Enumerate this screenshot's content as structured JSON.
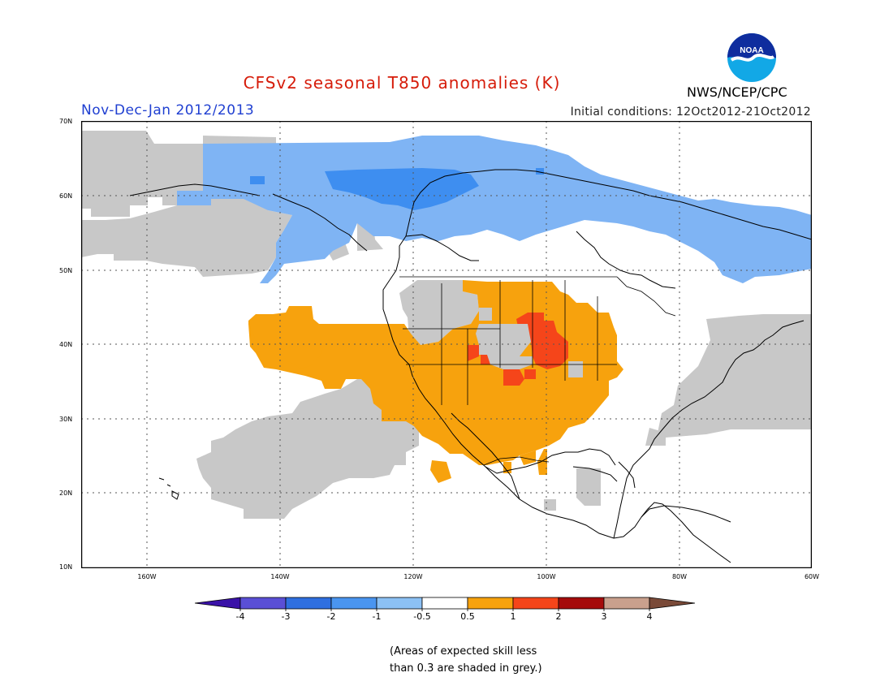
{
  "header": {
    "title": "CFSv2 seasonal T850 anomalies (K)",
    "period": "Nov-Dec-Jan 2012/2013",
    "initial_conditions": "Initial conditions: 12Oct2012-21Oct2012",
    "agency": "NWS/NCEP/CPC",
    "logo_text": "NOAA"
  },
  "colors": {
    "title": "#d61c0a",
    "period": "#1f3fd1",
    "grey_skill": "#c8c8c8",
    "lightblue": "#7fb4f4",
    "blue": "#3e8ef0",
    "orange": "#f7a20d",
    "red": "#f5451a",
    "coast": "#000000"
  },
  "map": {
    "lat_labels": [
      "70N",
      "60N",
      "50N",
      "40N",
      "30N",
      "20N",
      "10N"
    ],
    "lon_labels": [
      "160W",
      "140W",
      "120W",
      "100W",
      "80W",
      "60W"
    ]
  },
  "colorbar": {
    "labels": [
      "-4",
      "-3",
      "-2",
      "-1",
      "-0.5",
      "0.5",
      "1",
      "2",
      "3",
      "4"
    ],
    "colors": [
      "#3a12a8",
      "#5a4fd6",
      "#2f6fe0",
      "#4a95f0",
      "#8cc1f5",
      "#ffffff",
      "#f7a20d",
      "#f5451a",
      "#a50b0b",
      "#c9a08d",
      "#7a4a38"
    ]
  },
  "note": {
    "line1": "(Areas of expected skill less",
    "line2": "than 0.3 are shaded in grey.)"
  }
}
